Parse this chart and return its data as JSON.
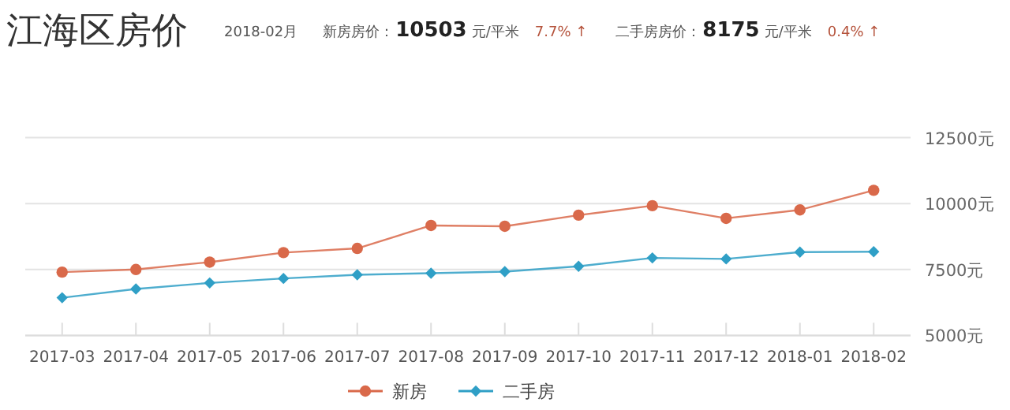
{
  "chart_data": {
    "type": "line",
    "title": "江海区房价",
    "annotations": [
      "2018-02月",
      "新房房价：",
      "10503",
      "元/平米",
      "7.7% ↑",
      "二手房房价：",
      "8175",
      "元/平米",
      "0.4% ↑"
    ],
    "categories": [
      "2017-03",
      "2017-04",
      "2017-05",
      "2017-06",
      "2017-07",
      "2017-08",
      "2017-09",
      "2017-10",
      "2017-11",
      "2017-12",
      "2018-01",
      "2018-02"
    ],
    "series": [
      {
        "name": "新房",
        "color": "#d9694a",
        "marker": "circle",
        "values": [
          7400,
          7500,
          7780,
          8140,
          8300,
          9170,
          9140,
          9560,
          9920,
          9440,
          9760,
          10503
        ]
      },
      {
        "name": "二手房",
        "color": "#2f9fc6",
        "marker": "diamond",
        "values": [
          6430,
          6760,
          6990,
          7160,
          7300,
          7360,
          7420,
          7620,
          7940,
          7900,
          8160,
          8175
        ]
      }
    ],
    "ylim": [
      5000,
      12500
    ],
    "yticks": [
      {
        "value": 5000,
        "label": "5000元"
      },
      {
        "value": 7500,
        "label": "7500元"
      },
      {
        "value": 10000,
        "label": "10000元"
      },
      {
        "value": 12500,
        "label": "12500元"
      }
    ],
    "grid": "y",
    "legend": "bottom"
  }
}
